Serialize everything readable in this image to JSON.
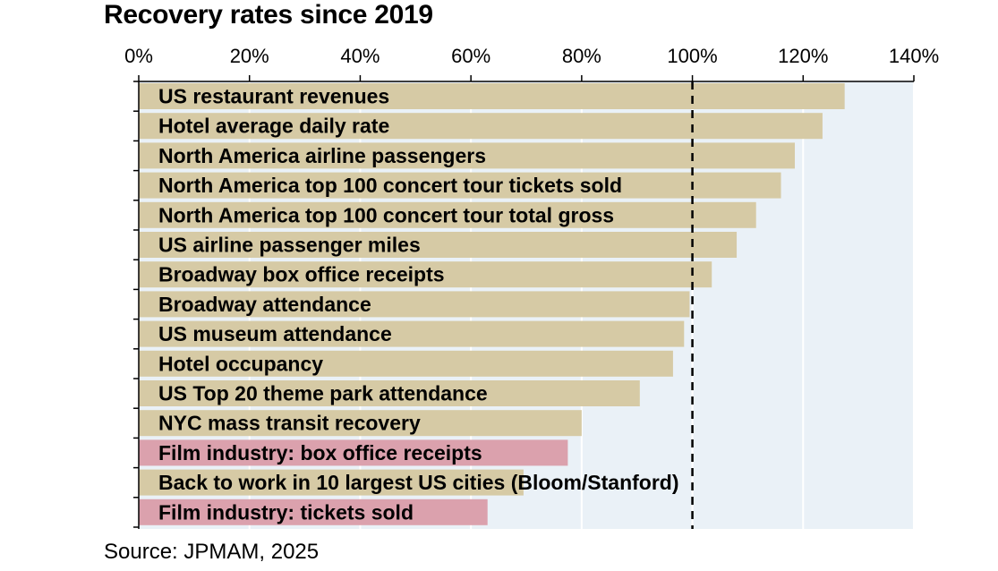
{
  "chart_data": {
    "type": "bar",
    "orientation": "horizontal",
    "title": "Recovery rates since 2019",
    "source": "Source: JPMAM, 2025",
    "xlim": [
      0,
      140
    ],
    "xticks": [
      0,
      20,
      40,
      60,
      80,
      100,
      120,
      140
    ],
    "xtick_labels": [
      "0%",
      "20%",
      "40%",
      "60%",
      "80%",
      "100%",
      "120%",
      "140%"
    ],
    "reference_line": 100,
    "colors": {
      "default": "#d6caa5",
      "highlight": "#dba1ad",
      "plot_bg": "#eaf1f7",
      "gridline": "#ffffff"
    },
    "bars": [
      {
        "label": "US restaurant revenues",
        "value": 127.5,
        "highlight": false
      },
      {
        "label": "Hotel average daily rate",
        "value": 123.5,
        "highlight": false
      },
      {
        "label": "North America airline passengers",
        "value": 118.5,
        "highlight": false
      },
      {
        "label": "North America top 100 concert tour tickets sold",
        "value": 116,
        "highlight": false
      },
      {
        "label": "North America top 100 concert tour total gross",
        "value": 111.5,
        "highlight": false
      },
      {
        "label": "US airline passenger miles",
        "value": 108,
        "highlight": false
      },
      {
        "label": "Broadway box office receipts",
        "value": 103.5,
        "highlight": false
      },
      {
        "label": "Broadway attendance",
        "value": 99.5,
        "highlight": false
      },
      {
        "label": "US museum attendance",
        "value": 98.5,
        "highlight": false
      },
      {
        "label": "Hotel occupancy",
        "value": 96.5,
        "highlight": false
      },
      {
        "label": "US Top 20 theme park attendance",
        "value": 90.5,
        "highlight": false
      },
      {
        "label": "NYC mass transit recovery",
        "value": 80,
        "highlight": false
      },
      {
        "label": "Film industry: box office receipts",
        "value": 77.5,
        "highlight": true
      },
      {
        "label": "Back to work in 10 largest US cities (Bloom/Stanford)",
        "value": 69.5,
        "highlight": false
      },
      {
        "label": "Film industry: tickets sold",
        "value": 63,
        "highlight": true
      }
    ]
  }
}
